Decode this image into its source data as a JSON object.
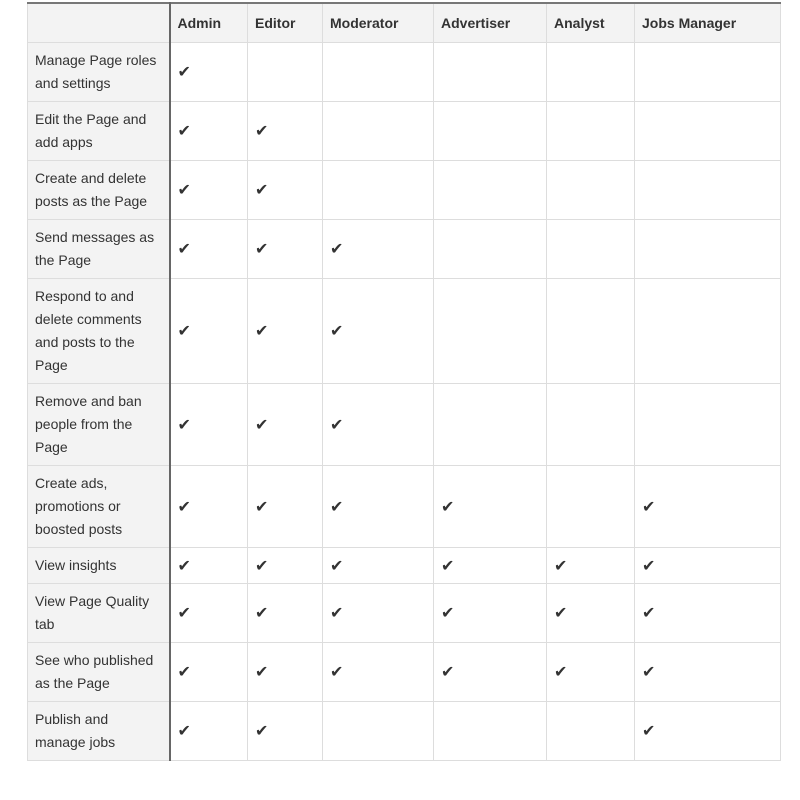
{
  "columns": [
    "",
    "Admin",
    "Editor",
    "Moderator",
    "Advertiser",
    "Analyst",
    "Jobs Manager"
  ],
  "check_glyph": "✔",
  "rows": [
    {
      "label": "Manage Page roles and settings",
      "checks": [
        true,
        false,
        false,
        false,
        false,
        false
      ]
    },
    {
      "label": "Edit the Page and add apps",
      "checks": [
        true,
        true,
        false,
        false,
        false,
        false
      ]
    },
    {
      "label": "Create and delete posts as the Page",
      "checks": [
        true,
        true,
        false,
        false,
        false,
        false
      ]
    },
    {
      "label": "Send messages as the Page",
      "checks": [
        true,
        true,
        true,
        false,
        false,
        false
      ]
    },
    {
      "label": "Respond to and delete comments and posts to the Page",
      "checks": [
        true,
        true,
        true,
        false,
        false,
        false
      ]
    },
    {
      "label": "Remove and ban people from the Page",
      "checks": [
        true,
        true,
        true,
        false,
        false,
        false
      ]
    },
    {
      "label": "Create ads, promotions or boosted posts",
      "checks": [
        true,
        true,
        true,
        true,
        false,
        true
      ]
    },
    {
      "label": "View insights",
      "checks": [
        true,
        true,
        true,
        true,
        true,
        true
      ]
    },
    {
      "label": "View Page Quality tab",
      "checks": [
        true,
        true,
        true,
        true,
        true,
        true
      ]
    },
    {
      "label": "See who published as the Page",
      "checks": [
        true,
        true,
        true,
        true,
        true,
        true
      ]
    },
    {
      "label": "Publish and manage jobs",
      "checks": [
        true,
        true,
        false,
        false,
        false,
        true
      ]
    }
  ]
}
